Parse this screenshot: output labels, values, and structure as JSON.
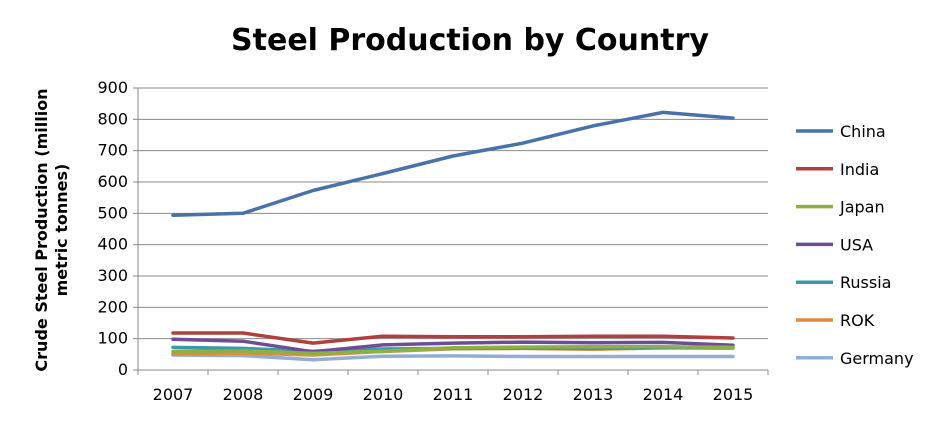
{
  "chart_data": {
    "type": "line",
    "title": "Steel Production by Country",
    "xlabel": "",
    "ylabel_lines": [
      "Crude Steel Production (million",
      "metric tonnes)"
    ],
    "categories": [
      "2007",
      "2008",
      "2009",
      "2010",
      "2011",
      "2012",
      "2013",
      "2014",
      "2015"
    ],
    "ylim": [
      0,
      900
    ],
    "yticks": [
      0,
      100,
      200,
      300,
      400,
      500,
      600,
      700,
      800,
      900
    ],
    "grid": true,
    "legend_position": "right",
    "series": [
      {
        "name": "China",
        "color": "#4A72A8",
        "values": [
          494,
          500,
          573,
          627,
          683,
          724,
          779,
          822,
          804
        ]
      },
      {
        "name": "India",
        "color": "#B0403D",
        "values": [
          118,
          118,
          86,
          108,
          106,
          106,
          108,
          108,
          102
        ]
      },
      {
        "name": "Japan",
        "color": "#8DB045",
        "values": [
          59,
          61,
          53,
          60,
          71,
          73,
          74,
          74,
          72
        ]
      },
      {
        "name": "USA",
        "color": "#6E4D97",
        "values": [
          98,
          92,
          58,
          80,
          86,
          89,
          87,
          88,
          79
        ]
      },
      {
        "name": "Russia",
        "color": "#3A9AA8",
        "values": [
          72,
          69,
          60,
          67,
          69,
          70,
          69,
          71,
          71
        ]
      },
      {
        "name": "ROK",
        "color": "#E48A3C",
        "values": [
          51,
          54,
          48,
          59,
          68,
          69,
          66,
          71,
          70
        ]
      },
      {
        "name": "Germany",
        "color": "#93AED5",
        "values": [
          48,
          46,
          33,
          44,
          45,
          43,
          43,
          43,
          43
        ]
      }
    ]
  }
}
